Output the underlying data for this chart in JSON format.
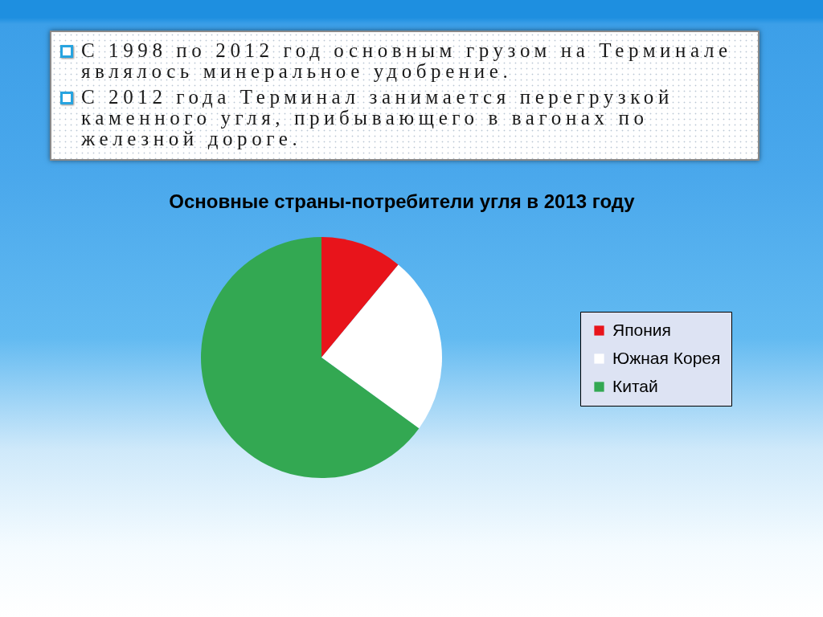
{
  "chart_data": {
    "type": "pie",
    "title": "Основные страны-потребители угля в 2013 году",
    "categories": [
      "Япония",
      "Южная Корея",
      "Китай"
    ],
    "values": [
      11,
      24,
      65
    ],
    "colors": [
      "#e8141b",
      "#ffffff",
      "#33a852"
    ],
    "legend": "right",
    "annotations": [
      "С 1998 по 2012 год основным грузом на Терминале являлось минеральное удобрение.",
      "С 2012 года Терминал занимается перегрузкой каменного угля, прибывающего в вагонах по железной дороге."
    ]
  }
}
